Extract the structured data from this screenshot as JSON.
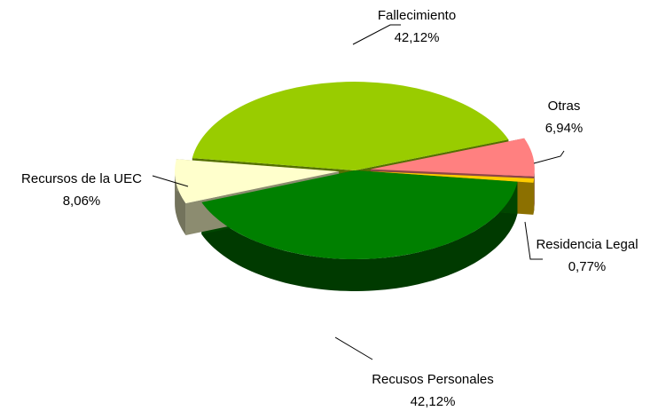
{
  "chart_data": {
    "type": "pie",
    "categories": [
      "Fallecimiento",
      "Otras",
      "Residencia Legal",
      "Recusos Personales",
      "Recursos de la UEC"
    ],
    "values": [
      42.12,
      6.94,
      0.77,
      42.12,
      8.06
    ],
    "value_labels": [
      "42,12%",
      "6,94%",
      "0,77%",
      "42,12%",
      "8,06%"
    ],
    "colors": [
      "#99cc00",
      "#ff8080",
      "#ffcc00",
      "#008000",
      "#ffffcc"
    ]
  }
}
